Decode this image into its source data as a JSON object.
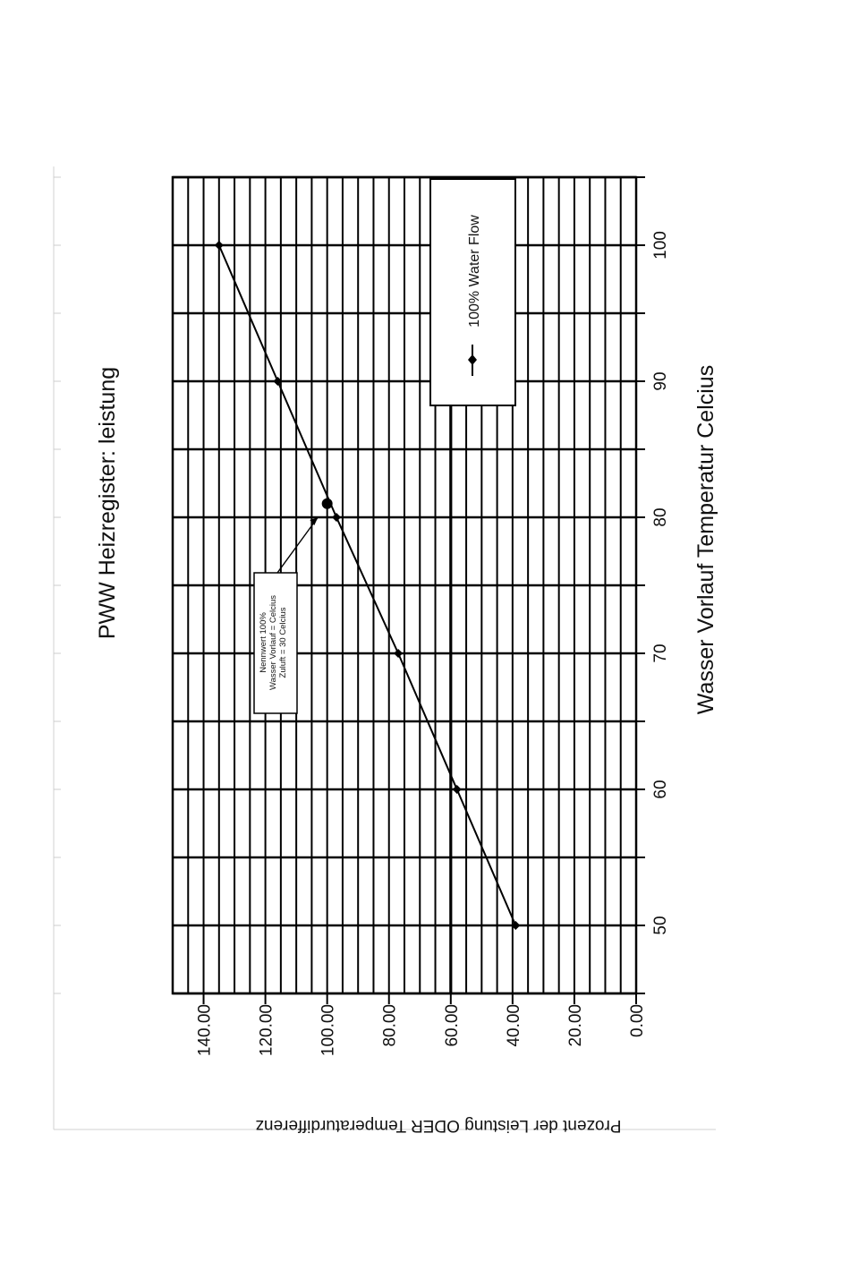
{
  "chart_data": {
    "type": "line",
    "title": "PWW Heizregister: leistung",
    "xlabel": "Wasser Vorlauf Temperatur Celcius",
    "ylabel": "Prozent der Leistung ODER Temperaturdifferenz",
    "xlim": [
      45,
      105
    ],
    "ylim": [
      0,
      150
    ],
    "x_ticks": [
      50,
      60,
      70,
      80,
      90,
      100
    ],
    "y_ticks": [
      "0.00",
      "20.00",
      "40.00",
      "60.00",
      "80.00",
      "100.00",
      "120.00",
      "140.00"
    ],
    "grid": true,
    "legend_position": "top-right",
    "series": [
      {
        "name": "100% Water Flow",
        "marker": "diamond",
        "x": [
          50,
          60,
          70,
          80,
          90,
          100
        ],
        "y": [
          39,
          58,
          77,
          97,
          116,
          135
        ]
      }
    ],
    "annotation": {
      "lines": [
        "Nennwert 100%",
        "Wasser Vorlauf = Celcius",
        "Zuluft = 30 Celcius"
      ],
      "points_to": {
        "x": 80,
        "y": 103
      }
    },
    "highlight_point": {
      "x": 81,
      "y": 100
    },
    "rotated": "90deg counterclockwise"
  }
}
